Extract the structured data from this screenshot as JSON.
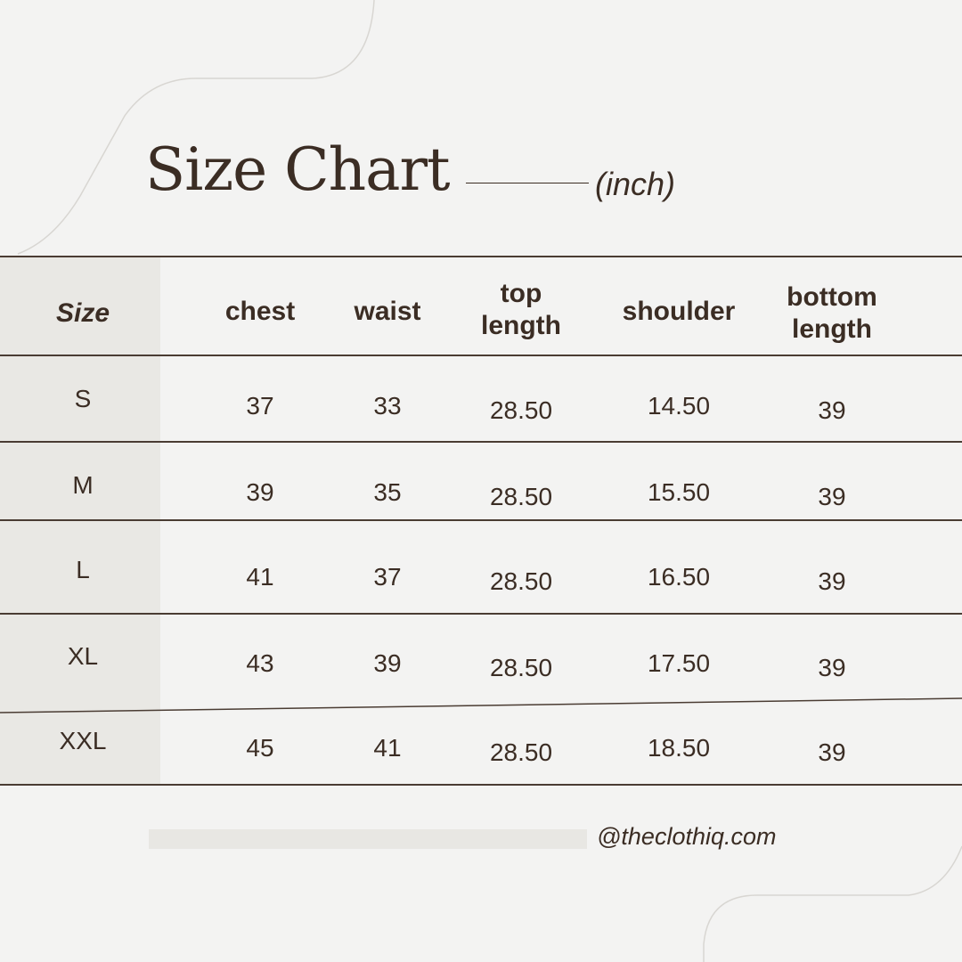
{
  "title": "Size Chart",
  "unit": "(inch)",
  "table": {
    "headers": [
      "Size",
      "chest",
      "waist",
      "top\nlength",
      "shoulder",
      "bottom\nlength"
    ],
    "rows": [
      [
        "S",
        "37",
        "33",
        "28.50",
        "14.50",
        "39"
      ],
      [
        "M",
        "39",
        "35",
        "28.50",
        "15.50",
        "39"
      ],
      [
        "L",
        "41",
        "37",
        "28.50",
        "16.50",
        "39"
      ],
      [
        "XL",
        "43",
        "39",
        "28.50",
        "17.50",
        "39"
      ],
      [
        "XXL",
        "45",
        "41",
        "28.50",
        "18.50",
        "39"
      ]
    ]
  },
  "footer": {
    "handle": "@theclothiq.com"
  },
  "colors": {
    "text": "#3b2d24",
    "background": "#f3f3f2",
    "size_column": "#e9e8e4"
  }
}
